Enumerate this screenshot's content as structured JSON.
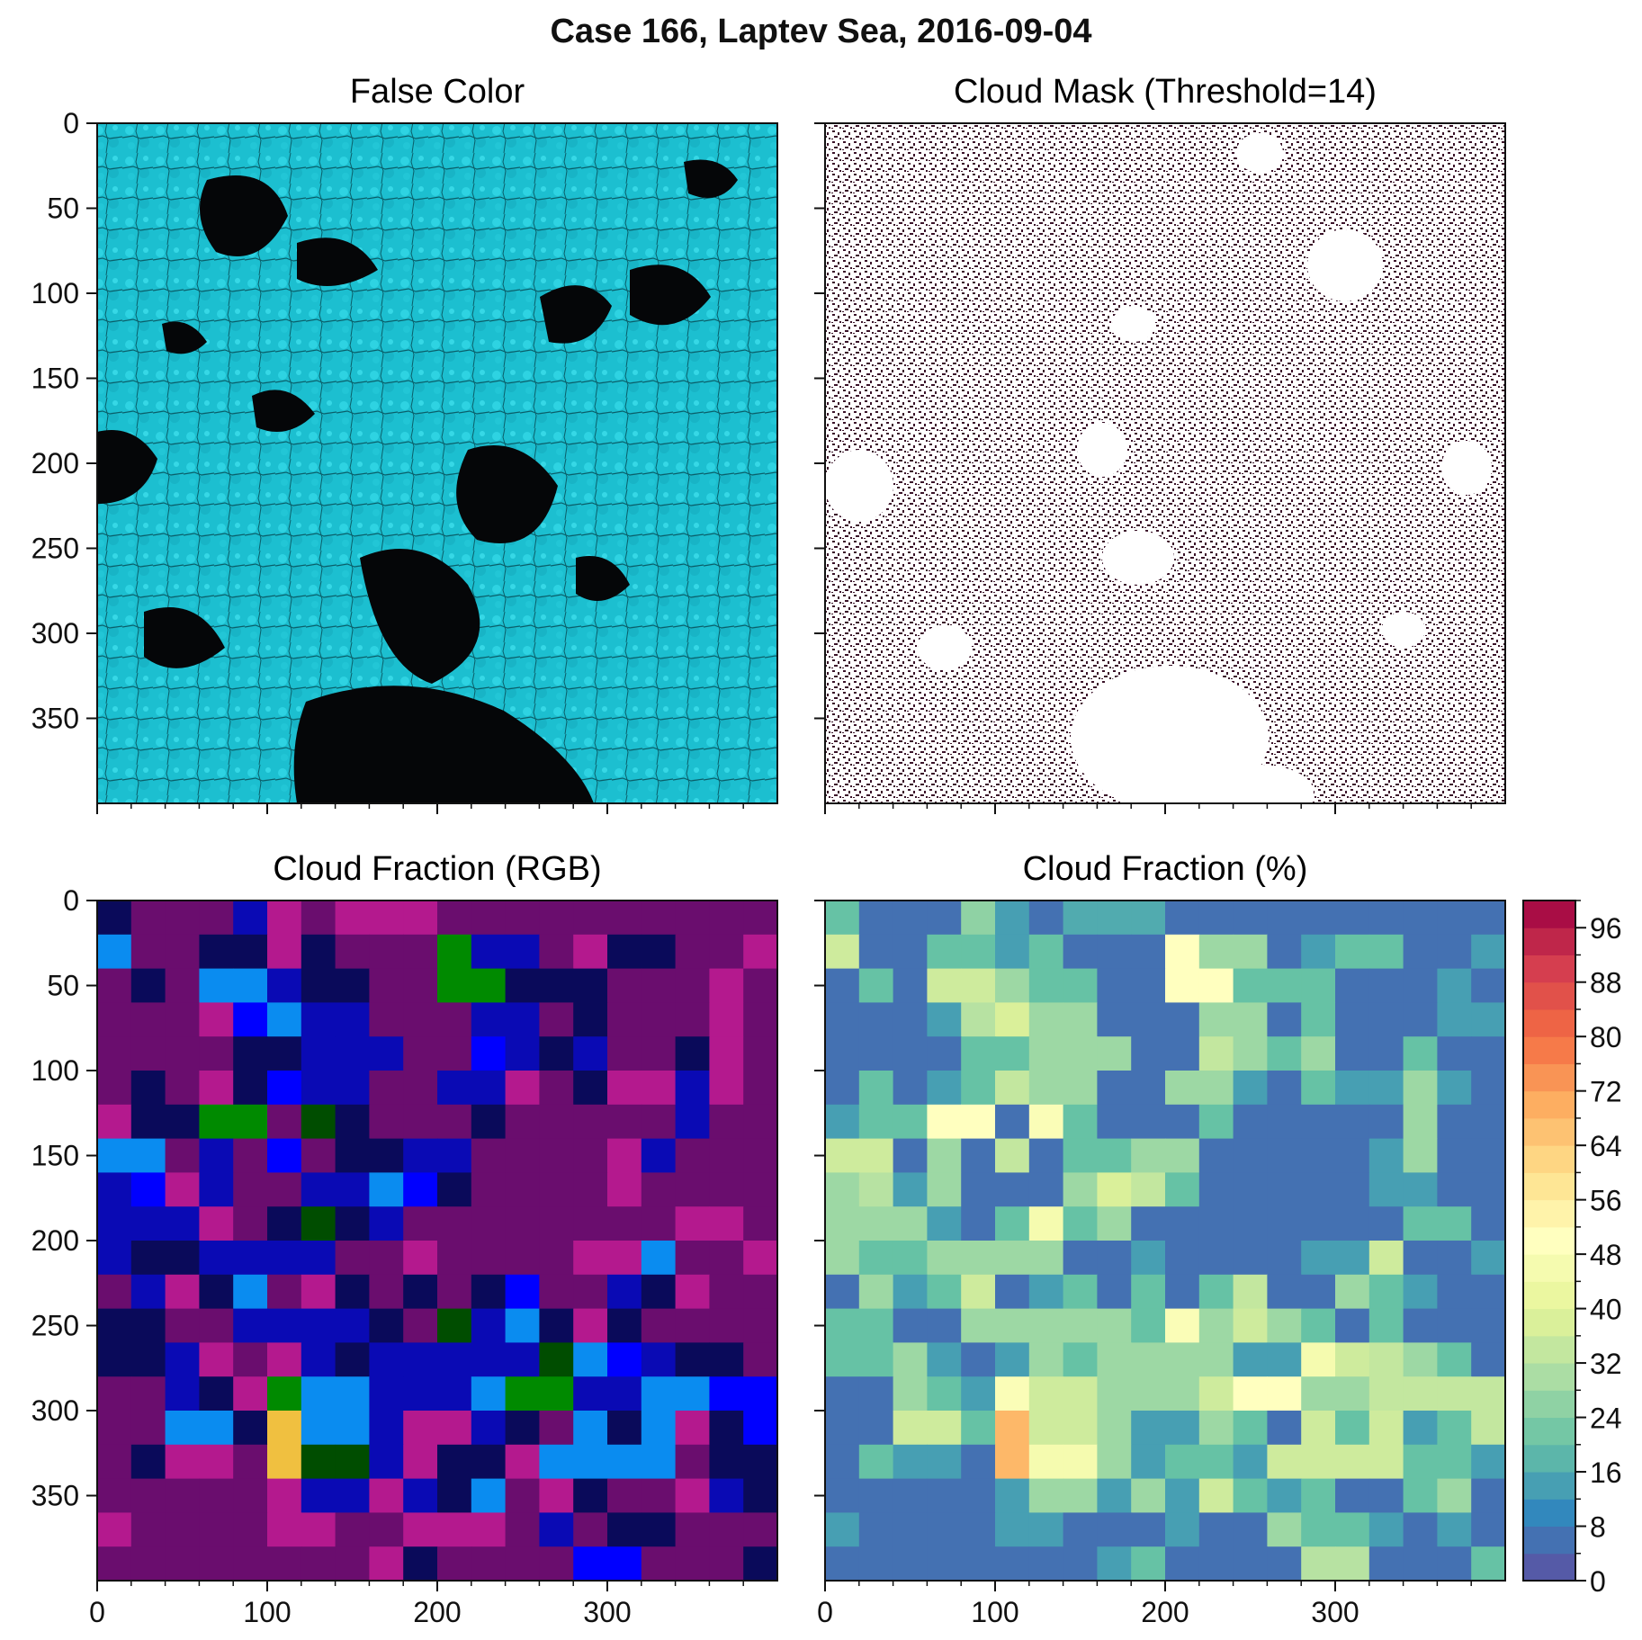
{
  "figure": {
    "title": "Case 166, Laptev Sea, 2016-09-04"
  },
  "panels": {
    "false_color": {
      "title": "False Color"
    },
    "cloud_mask": {
      "title": "Cloud Mask (Threshold=14)"
    },
    "cf_rgb": {
      "title": "Cloud Fraction (RGB)"
    },
    "cf_pct": {
      "title": "Cloud Fraction (%)"
    }
  },
  "colors": {
    "ice": "#1fc8d8",
    "water": "#050608",
    "mask_cloud": "#3a1228",
    "mask_clear": "#ffffff"
  },
  "chart_data": [
    {
      "type": "heatmap",
      "title": "False Color",
      "xlim": [
        0,
        400
      ],
      "ylim": [
        400,
        0
      ],
      "xticks": [],
      "yticks": [
        0,
        50,
        100,
        150,
        200,
        250,
        300,
        350
      ],
      "note_values": "satellite false-color imagery (ice cyan, open water black)"
    },
    {
      "type": "heatmap",
      "title": "Cloud Mask (Threshold=14)",
      "xlim": [
        0,
        400
      ],
      "ylim": [
        400,
        0
      ],
      "xticks": [],
      "yticks": []
    },
    {
      "type": "heatmap",
      "title": "Cloud Fraction (RGB)",
      "xlim": [
        0,
        400
      ],
      "ylim": [
        400,
        0
      ],
      "xticks": [
        0,
        100,
        200,
        300
      ],
      "yticks": [
        0,
        50,
        100,
        150,
        200,
        250,
        300,
        350
      ],
      "grid_cell": 20,
      "palette": {
        "P": "#6a0d6e",
        "M": "#b4198e",
        "N": "#0a0a5a",
        "B": "#0a0ab4",
        "L": "#0000ff",
        "S": "#0a8cf0",
        "G": "#008a00",
        "D": "#004d00",
        "Y": "#f0c040"
      },
      "rows": [
        "NPPPBMPMMMPPPPPPPPPP",
        "SPPNNMNPPPGBBPMNNPPM",
        "PNPSSBNNPPGGNNNPPPMP",
        "PPPMLSBBPPPBBPNPPPMP",
        "PPPPNNBBBPPLBNBPPNMP",
        "PNPMNLBBPPBBMPNMMBMP",
        "MNNGGPDNPPPNPPPPPBPP",
        "SSPBPLPNNBBPPPPMBPPP",
        "BLMBPPBBSLNPPPPMPPPP",
        "BBBMPNDNBPPPPPPPPMMP",
        "BNNBBBBPPMPPPPMMSPPM",
        "PBMNSPMNPNPNLPPBNMPP",
        "NNPPBBBBNPDBSNMNPPPP",
        "NNBMPMBNBBBBBDSLBNNP",
        "PPBNMGSSBBBSGGBBSSLL",
        "PPSSNYSSBMMBNPSNSMNL",
        "PNMMPYDDBMNNMSSSSPNN",
        "PPPPPMBBMBNSPMNPPMBN",
        "MPPPPMMPPMMMPBPNNPPP",
        "PPPPPPPPMNPPPPLLPPPN"
      ]
    },
    {
      "type": "heatmap",
      "title": "Cloud Fraction (%)",
      "xlim": [
        0,
        400
      ],
      "ylim": [
        400,
        0
      ],
      "xticks": [
        0,
        100,
        200,
        300
      ],
      "yticks": [],
      "grid_cell": 20,
      "colorbar": {
        "min": 0,
        "max": 100,
        "step": 4,
        "ticks": [
          0,
          8,
          16,
          24,
          32,
          40,
          48,
          56,
          64,
          72,
          80,
          88,
          96
        ]
      },
      "values": [
        [
          18,
          4,
          4,
          4,
          24,
          12,
          4,
          14,
          14,
          14,
          4,
          4,
          4,
          4,
          4,
          4,
          4,
          4,
          4,
          4
        ],
        [
          34,
          4,
          4,
          18,
          18,
          12,
          18,
          4,
          4,
          4,
          48,
          26,
          26,
          4,
          12,
          18,
          18,
          4,
          4,
          12
        ],
        [
          4,
          18,
          4,
          34,
          34,
          26,
          18,
          18,
          4,
          4,
          48,
          48,
          18,
          18,
          18,
          4,
          4,
          4,
          12,
          4
        ],
        [
          4,
          4,
          4,
          12,
          30,
          36,
          26,
          26,
          4,
          4,
          4,
          26,
          26,
          4,
          18,
          4,
          4,
          4,
          12,
          12
        ],
        [
          4,
          4,
          4,
          4,
          18,
          18,
          26,
          26,
          26,
          4,
          4,
          32,
          26,
          18,
          26,
          4,
          4,
          18,
          4,
          4
        ],
        [
          4,
          18,
          4,
          12,
          18,
          32,
          26,
          26,
          4,
          4,
          26,
          26,
          12,
          4,
          18,
          12,
          12,
          26,
          12,
          4
        ],
        [
          12,
          18,
          18,
          48,
          48,
          4,
          46,
          18,
          4,
          4,
          4,
          18,
          4,
          4,
          4,
          4,
          4,
          26,
          4,
          4
        ],
        [
          34,
          34,
          4,
          26,
          4,
          32,
          4,
          18,
          18,
          26,
          26,
          4,
          4,
          4,
          4,
          4,
          12,
          26,
          4,
          4
        ],
        [
          26,
          30,
          12,
          26,
          4,
          4,
          4,
          26,
          36,
          32,
          18,
          4,
          4,
          4,
          4,
          4,
          12,
          12,
          4,
          4
        ],
        [
          26,
          26,
          26,
          12,
          4,
          18,
          44,
          18,
          26,
          4,
          4,
          4,
          4,
          4,
          4,
          4,
          4,
          18,
          18,
          4
        ],
        [
          26,
          18,
          18,
          26,
          26,
          26,
          26,
          4,
          4,
          12,
          4,
          4,
          4,
          4,
          12,
          12,
          34,
          4,
          4,
          12
        ],
        [
          4,
          26,
          12,
          18,
          34,
          4,
          12,
          18,
          4,
          18,
          4,
          18,
          32,
          4,
          4,
          26,
          18,
          12,
          4,
          4
        ],
        [
          18,
          18,
          4,
          4,
          26,
          26,
          26,
          26,
          26,
          18,
          46,
          26,
          34,
          26,
          18,
          4,
          18,
          4,
          4,
          4
        ],
        [
          18,
          18,
          26,
          12,
          4,
          12,
          26,
          18,
          26,
          26,
          26,
          26,
          12,
          12,
          44,
          34,
          32,
          26,
          18,
          4
        ],
        [
          4,
          4,
          26,
          18,
          12,
          46,
          34,
          34,
          26,
          26,
          26,
          34,
          48,
          48,
          26,
          26,
          32,
          32,
          32,
          32
        ],
        [
          4,
          4,
          34,
          34,
          18,
          66,
          34,
          34,
          26,
          12,
          12,
          26,
          18,
          4,
          34,
          18,
          34,
          12,
          18,
          32
        ],
        [
          4,
          18,
          12,
          12,
          4,
          66,
          44,
          44,
          26,
          12,
          18,
          18,
          12,
          34,
          34,
          34,
          34,
          18,
          18,
          12
        ],
        [
          4,
          4,
          4,
          4,
          4,
          12,
          26,
          26,
          12,
          26,
          12,
          34,
          18,
          12,
          18,
          4,
          4,
          18,
          26,
          4
        ],
        [
          12,
          4,
          4,
          4,
          4,
          12,
          12,
          4,
          4,
          4,
          12,
          4,
          4,
          26,
          18,
          18,
          12,
          4,
          12,
          4
        ],
        [
          4,
          4,
          4,
          4,
          4,
          4,
          4,
          4,
          12,
          18,
          4,
          4,
          4,
          4,
          30,
          30,
          4,
          4,
          4,
          18
        ]
      ]
    }
  ]
}
